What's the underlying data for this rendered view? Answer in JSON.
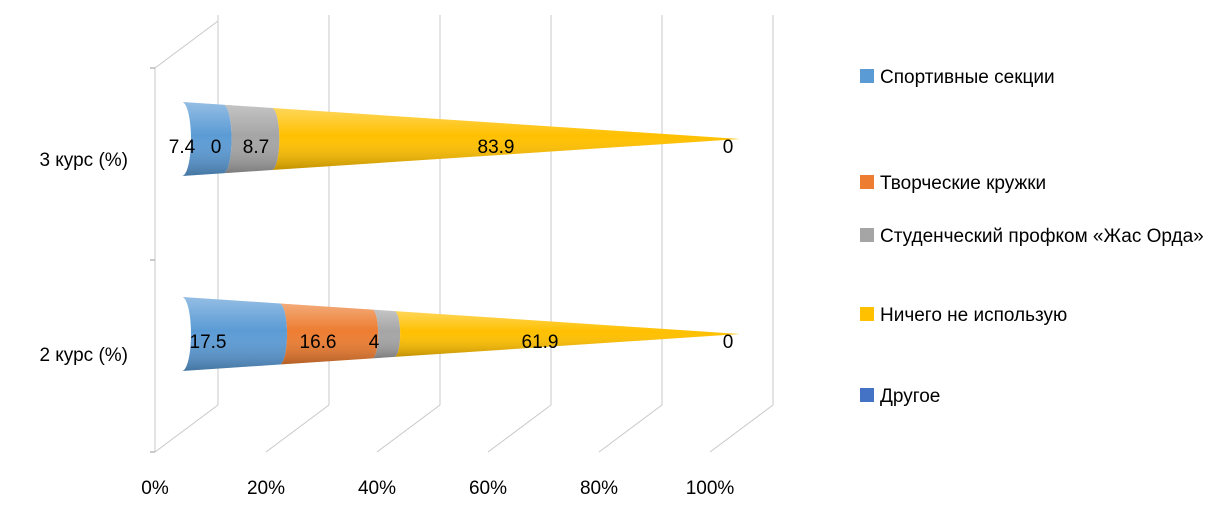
{
  "chart_data": {
    "type": "bar",
    "subtype": "3d-cone-stacked-percent-horizontal",
    "categories": [
      "3 курс (%)",
      "2 курс (%)"
    ],
    "series": [
      {
        "name": "Спортивные секции",
        "color": "#5B9BD5",
        "values": [
          7.4,
          17.5
        ]
      },
      {
        "name": "Творческие кружки",
        "color": "#ED7D31",
        "values": [
          0,
          16.6
        ]
      },
      {
        "name": "Студенческий профком «Жас Орда»",
        "color": "#A5A5A5",
        "values": [
          8.7,
          4
        ]
      },
      {
        "name": "Ничего не использую",
        "color": "#FFC000",
        "values": [
          83.9,
          61.9
        ]
      },
      {
        "name": "Другое",
        "color": "#4472C4",
        "values": [
          0,
          0
        ]
      }
    ],
    "x_ticks": [
      "0%",
      "20%",
      "40%",
      "60%",
      "80%",
      "100%"
    ],
    "xlim": [
      0,
      100
    ],
    "grid": true,
    "legend_position": "right"
  },
  "legend": {
    "items": [
      {
        "label": "Спортивные секции",
        "color": "#5B9BD5"
      },
      {
        "label": "Творческие кружки",
        "color": "#ED7D31"
      },
      {
        "label": "Студенческий профком «Жас Орда»",
        "color": "#A5A5A5"
      },
      {
        "label": "Ничего не использую",
        "color": "#FFC000"
      },
      {
        "label": "Другое",
        "color": "#4472C4"
      }
    ]
  }
}
